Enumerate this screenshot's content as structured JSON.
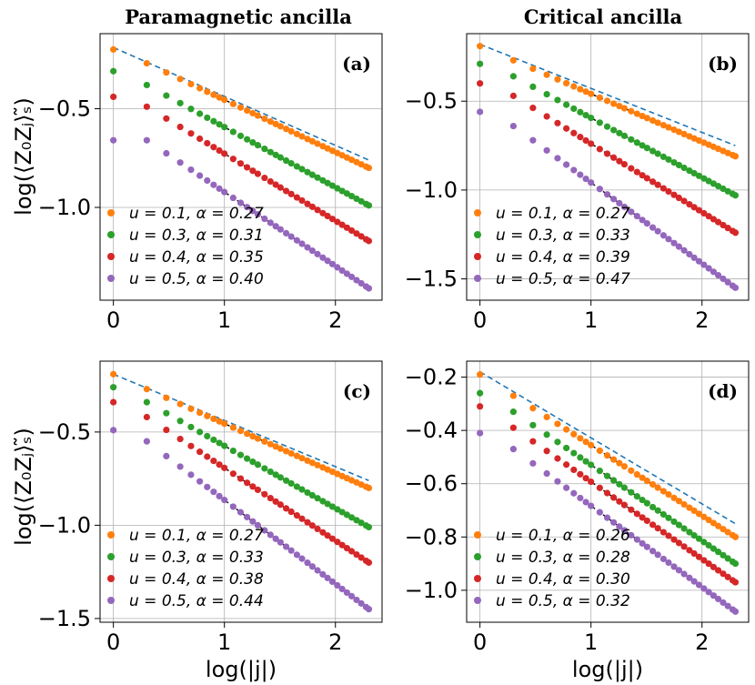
{
  "figure": {
    "col_titles": [
      "Paramagnetic ancilla",
      "Critical ancilla"
    ],
    "ylabel": "log(⟨Z₀Zⱼ⟩ₛ̃)",
    "xlabel": "log(|j|)"
  },
  "colors": {
    "ref_line": "#1f77b4",
    "fit_line": "#000000",
    "series": [
      "#ff7f0e",
      "#2ca02c",
      "#d62728",
      "#9467bd"
    ]
  },
  "chart_data": [
    {
      "type": "scatter",
      "panel_label": "(a)",
      "xlim": [
        -0.12,
        2.42
      ],
      "ylim": [
        -1.47,
        -0.12
      ],
      "xticks": [
        0,
        1,
        2
      ],
      "yticks": [
        -0.5,
        -1.0
      ],
      "ytick_labels": [
        "−0.5",
        "−1.0"
      ],
      "grid": true,
      "legend_position": "lower-left",
      "reference_line": {
        "x": [
          0,
          2.3
        ],
        "y": [
          -0.19,
          -0.76
        ],
        "style": "dashed"
      },
      "series": [
        {
          "name": "u = 0.1, α = 0.27",
          "u": 0.1,
          "alpha": 0.27,
          "y0": -0.2,
          "y1": -0.27,
          "yend": -0.8
        },
        {
          "name": "u = 0.3, α = 0.31",
          "u": 0.3,
          "alpha": 0.31,
          "y0": -0.31,
          "y1": -0.38,
          "yend": -0.99
        },
        {
          "name": "u = 0.4, α = 0.35",
          "u": 0.4,
          "alpha": 0.35,
          "y0": -0.44,
          "y1": -0.49,
          "yend": -1.17
        },
        {
          "name": "u = 0.5, α = 0.40",
          "u": 0.5,
          "alpha": 0.4,
          "y0": -0.66,
          "y1": -0.66,
          "yend": -1.41
        }
      ]
    },
    {
      "type": "scatter",
      "panel_label": "(b)",
      "xlim": [
        -0.12,
        2.42
      ],
      "ylim": [
        -1.62,
        -0.12
      ],
      "xticks": [
        0,
        1,
        2
      ],
      "yticks": [
        -0.5,
        -1.0,
        -1.5
      ],
      "ytick_labels": [
        "−0.5",
        "−1.0",
        "−1.5"
      ],
      "grid": true,
      "legend_position": "lower-left",
      "reference_line": {
        "x": [
          0,
          2.3
        ],
        "y": [
          -0.18,
          -0.75
        ],
        "style": "dashed"
      },
      "series": [
        {
          "name": "u = 0.1, α = 0.27",
          "u": 0.1,
          "alpha": 0.27,
          "y0": -0.19,
          "y1": -0.27,
          "yend": -0.81
        },
        {
          "name": "u = 0.3, α = 0.33",
          "u": 0.3,
          "alpha": 0.33,
          "y0": -0.29,
          "y1": -0.36,
          "yend": -1.03
        },
        {
          "name": "u = 0.4, α = 0.39",
          "u": 0.4,
          "alpha": 0.39,
          "y0": -0.4,
          "y1": -0.47,
          "yend": -1.24
        },
        {
          "name": "u = 0.5, α = 0.47",
          "u": 0.5,
          "alpha": 0.47,
          "y0": -0.56,
          "y1": -0.64,
          "yend": -1.55
        }
      ]
    },
    {
      "type": "scatter",
      "panel_label": "(c)",
      "xlim": [
        -0.12,
        2.42
      ],
      "ylim": [
        -1.52,
        -0.12
      ],
      "xticks": [
        0,
        1,
        2
      ],
      "yticks": [
        -0.5,
        -1.0,
        -1.5
      ],
      "ytick_labels": [
        "−0.5",
        "−1.0",
        "−1.5"
      ],
      "grid": true,
      "legend_position": "lower-left",
      "reference_line": {
        "x": [
          0,
          2.3
        ],
        "y": [
          -0.19,
          -0.76
        ],
        "style": "dashed"
      },
      "series": [
        {
          "name": "u = 0.1, α = 0.27",
          "u": 0.1,
          "alpha": 0.27,
          "y0": -0.19,
          "y1": -0.27,
          "yend": -0.8
        },
        {
          "name": "u = 0.3, α = 0.33",
          "u": 0.3,
          "alpha": 0.33,
          "y0": -0.26,
          "y1": -0.34,
          "yend": -1.01
        },
        {
          "name": "u = 0.4, α = 0.38",
          "u": 0.4,
          "alpha": 0.38,
          "y0": -0.34,
          "y1": -0.42,
          "yend": -1.2
        },
        {
          "name": "u = 0.5, α = 0.44",
          "u": 0.5,
          "alpha": 0.44,
          "y0": -0.49,
          "y1": -0.55,
          "yend": -1.45
        }
      ]
    },
    {
      "type": "scatter",
      "panel_label": "(d)",
      "xlim": [
        -0.12,
        2.42
      ],
      "ylim": [
        -1.12,
        -0.14
      ],
      "xticks": [
        0,
        1,
        2
      ],
      "yticks": [
        -0.2,
        -0.4,
        -0.6,
        -0.8,
        -1.0
      ],
      "ytick_labels": [
        "−0.2",
        "−0.4",
        "−0.6",
        "−0.8",
        "−1.0"
      ],
      "grid": true,
      "legend_position": "lower-left",
      "reference_line": {
        "x": [
          0,
          2.3
        ],
        "y": [
          -0.18,
          -0.75
        ],
        "style": "dashed"
      },
      "series": [
        {
          "name": "u = 0.1, α = 0.26",
          "u": 0.1,
          "alpha": 0.26,
          "y0": -0.19,
          "y1": -0.27,
          "yend": -0.8
        },
        {
          "name": "u = 0.3, α = 0.28",
          "u": 0.3,
          "alpha": 0.28,
          "y0": -0.26,
          "y1": -0.33,
          "yend": -0.9
        },
        {
          "name": "u = 0.4, α = 0.30",
          "u": 0.4,
          "alpha": 0.3,
          "y0": -0.31,
          "y1": -0.39,
          "yend": -0.97
        },
        {
          "name": "u = 0.5, α = 0.32",
          "u": 0.5,
          "alpha": 0.32,
          "y0": -0.41,
          "y1": -0.47,
          "yend": -1.08
        }
      ]
    }
  ]
}
